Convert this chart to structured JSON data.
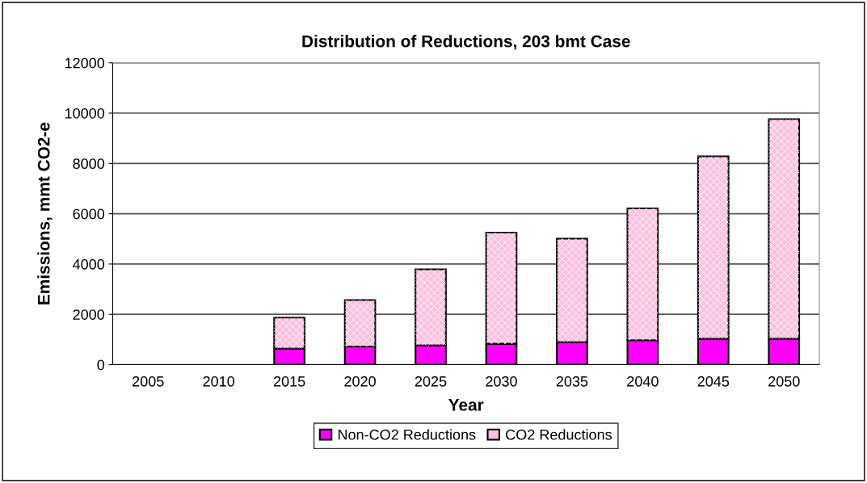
{
  "chart_data": {
    "type": "bar",
    "title": "Distribution of Reductions, 203 bmt Case",
    "xlabel": "Year",
    "ylabel": "Emissions, mmt CO2-e",
    "categories": [
      "2005",
      "2010",
      "2015",
      "2020",
      "2025",
      "2030",
      "2035",
      "2040",
      "2045",
      "2050"
    ],
    "stacked": true,
    "series": [
      {
        "name": "Non-CO2 Reductions",
        "color": "#ff00ff",
        "values": [
          null,
          null,
          640,
          720,
          770,
          830,
          900,
          970,
          1030,
          1030
        ]
      },
      {
        "name": "CO2 Reductions",
        "color": "#ffc0e0",
        "values": [
          null,
          null,
          1230,
          1850,
          3020,
          4420,
          4110,
          5240,
          7250,
          8730
        ]
      }
    ],
    "ylim": [
      0,
      12000
    ],
    "yticks": [
      0,
      2000,
      4000,
      6000,
      8000,
      10000,
      12000
    ],
    "grid": "y",
    "legend": "bottom"
  }
}
